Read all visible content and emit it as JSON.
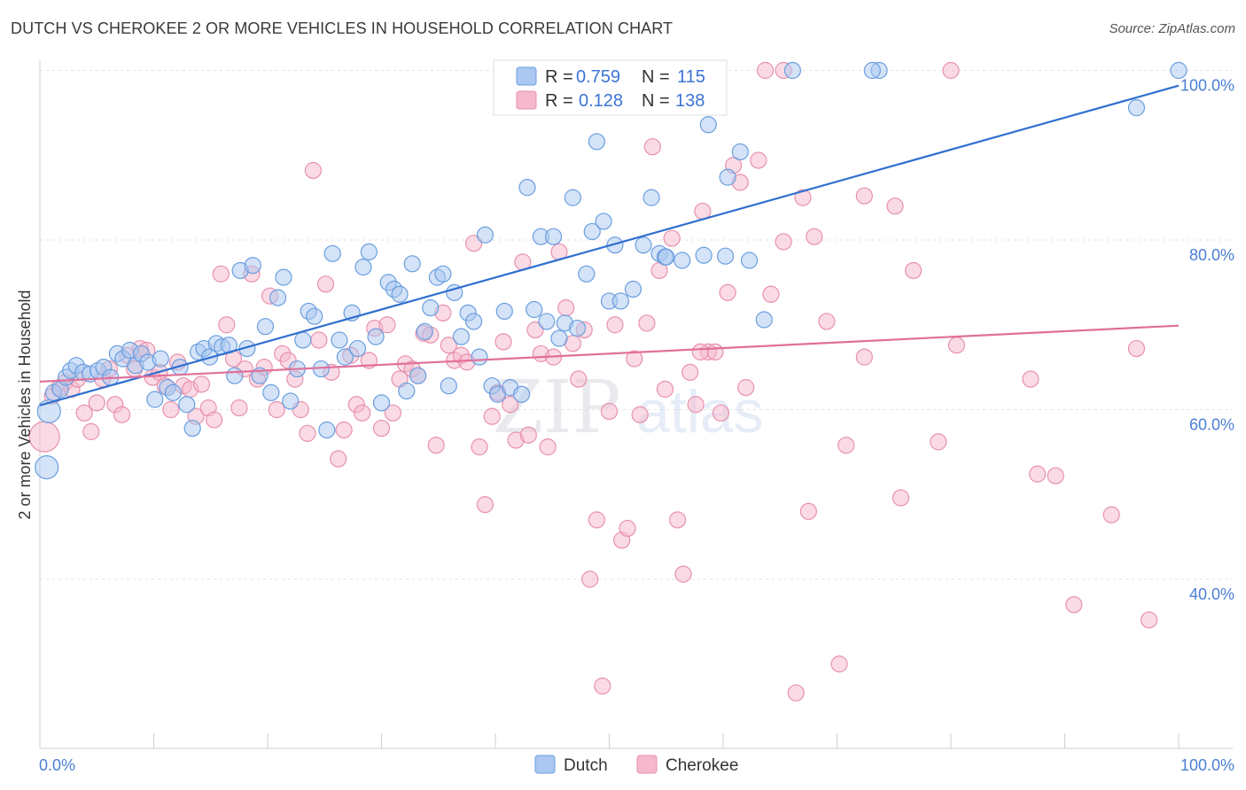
{
  "title": "DUTCH VS CHEROKEE 2 OR MORE VEHICLES IN HOUSEHOLD CORRELATION CHART",
  "source": "Source: ZipAtlas.com",
  "watermark": {
    "zip": "ZIP",
    "atlas": "atlas"
  },
  "colors": {
    "dutch_fill": "#aac8f0",
    "dutch_stroke": "#6a9ee0",
    "dutch_line": "#2f6fcf",
    "cherokee_fill": "#f5b8cc",
    "cherokee_stroke": "#e890ad",
    "cherokee_line": "#e0709a",
    "accent_text": "#4a7fd4"
  },
  "legend": {
    "rows": [
      {
        "series": "Dutch",
        "r_label": "R =",
        "r_value": "0.759",
        "n_label": "N =",
        "n_value": "115"
      },
      {
        "series": "Cherokee",
        "r_label": "R =",
        "r_value": "0.128",
        "n_label": "N =",
        "n_value": "138"
      }
    ]
  },
  "bottom_legend": [
    "Dutch",
    "Cherokee"
  ],
  "chart_data": {
    "type": "scatter",
    "title": "DUTCH VS CHEROKEE 2 OR MORE VEHICLES IN HOUSEHOLD CORRELATION CHART",
    "xlabel": "",
    "ylabel": "2 or more Vehicles in Household",
    "xlim": [
      0,
      100
    ],
    "ylim": [
      20,
      102
    ],
    "x_tick_labels": [
      "0.0%",
      "100.0%"
    ],
    "y_ticks": [
      40,
      60,
      80,
      100
    ],
    "y_tick_labels": [
      "40.0%",
      "60.0%",
      "80.0%",
      "100.0%"
    ],
    "grid": true,
    "series": [
      {
        "name": "Dutch",
        "r": 0.759,
        "n": 115,
        "trend": {
          "x": [
            0,
            100
          ],
          "y": [
            60.5,
            98.2
          ]
        },
        "points": [
          [
            0.6,
            53.2
          ],
          [
            0.8,
            59.8
          ],
          [
            1.2,
            62.0
          ],
          [
            1.8,
            62.4
          ],
          [
            2.3,
            63.8
          ],
          [
            2.7,
            64.6
          ],
          [
            3.2,
            65.2
          ],
          [
            3.8,
            64.4
          ],
          [
            4.4,
            64.2
          ],
          [
            5.1,
            64.6
          ],
          [
            5.6,
            65.0
          ],
          [
            6.2,
            63.8
          ],
          [
            6.8,
            66.6
          ],
          [
            7.3,
            66.0
          ],
          [
            7.9,
            67.0
          ],
          [
            8.4,
            65.2
          ],
          [
            8.9,
            66.6
          ],
          [
            9.5,
            65.6
          ],
          [
            10.1,
            61.2
          ],
          [
            10.6,
            66.0
          ],
          [
            11.2,
            62.6
          ],
          [
            11.7,
            62.0
          ],
          [
            12.3,
            65.0
          ],
          [
            12.9,
            60.6
          ],
          [
            13.4,
            57.8
          ],
          [
            13.9,
            66.8
          ],
          [
            14.4,
            67.2
          ],
          [
            14.9,
            66.2
          ],
          [
            15.5,
            67.8
          ],
          [
            16.0,
            67.4
          ],
          [
            16.6,
            67.6
          ],
          [
            17.1,
            64.0
          ],
          [
            17.6,
            76.4
          ],
          [
            18.2,
            67.2
          ],
          [
            18.7,
            77.0
          ],
          [
            19.3,
            64.0
          ],
          [
            19.8,
            69.8
          ],
          [
            20.3,
            62.0
          ],
          [
            20.9,
            73.2
          ],
          [
            21.4,
            75.6
          ],
          [
            22.0,
            61.0
          ],
          [
            22.6,
            64.8
          ],
          [
            23.1,
            68.2
          ],
          [
            23.6,
            71.6
          ],
          [
            24.1,
            71.0
          ],
          [
            24.7,
            64.8
          ],
          [
            25.2,
            57.6
          ],
          [
            25.7,
            78.4
          ],
          [
            26.3,
            68.2
          ],
          [
            26.8,
            66.2
          ],
          [
            27.4,
            71.4
          ],
          [
            27.9,
            67.2
          ],
          [
            28.4,
            76.8
          ],
          [
            28.9,
            78.6
          ],
          [
            29.5,
            68.6
          ],
          [
            30.0,
            60.8
          ],
          [
            30.6,
            75.0
          ],
          [
            31.1,
            74.2
          ],
          [
            31.6,
            73.6
          ],
          [
            32.2,
            62.2
          ],
          [
            32.7,
            77.2
          ],
          [
            33.2,
            64.0
          ],
          [
            33.8,
            69.2
          ],
          [
            34.3,
            72.0
          ],
          [
            34.9,
            75.6
          ],
          [
            35.4,
            76.0
          ],
          [
            35.9,
            62.8
          ],
          [
            36.4,
            73.8
          ],
          [
            37.0,
            68.6
          ],
          [
            37.6,
            71.4
          ],
          [
            38.1,
            70.4
          ],
          [
            38.6,
            66.2
          ],
          [
            39.1,
            80.6
          ],
          [
            39.7,
            62.8
          ],
          [
            40.2,
            61.8
          ],
          [
            40.8,
            71.6
          ],
          [
            41.3,
            62.6
          ],
          [
            41.8,
            96.6
          ],
          [
            42.3,
            61.8
          ],
          [
            42.8,
            86.2
          ],
          [
            43.4,
            71.8
          ],
          [
            44.0,
            80.4
          ],
          [
            44.5,
            70.4
          ],
          [
            45.1,
            80.4
          ],
          [
            45.6,
            68.4
          ],
          [
            46.1,
            70.2
          ],
          [
            46.8,
            85.0
          ],
          [
            47.2,
            69.6
          ],
          [
            48.0,
            76.0
          ],
          [
            48.5,
            81.0
          ],
          [
            48.9,
            91.6
          ],
          [
            49.5,
            82.2
          ],
          [
            50.0,
            72.8
          ],
          [
            50.5,
            79.4
          ],
          [
            51.0,
            72.8
          ],
          [
            52.1,
            74.2
          ],
          [
            53.0,
            79.4
          ],
          [
            53.7,
            85.0
          ],
          [
            54.4,
            78.4
          ],
          [
            54.9,
            78.0
          ],
          [
            56.4,
            77.6
          ],
          [
            58.3,
            78.2
          ],
          [
            58.7,
            93.6
          ],
          [
            60.4,
            87.4
          ],
          [
            61.5,
            90.4
          ],
          [
            62.3,
            77.6
          ],
          [
            63.6,
            70.6
          ],
          [
            66.1,
            100.0
          ],
          [
            73.7,
            100.0
          ],
          [
            96.3,
            95.6
          ],
          [
            100.0,
            100.0
          ],
          [
            73.1,
            100.0
          ],
          [
            49.0,
            100.0
          ],
          [
            60.2,
            78.1
          ],
          [
            55.0,
            78.0
          ]
        ]
      },
      {
        "name": "Cherokee",
        "r": 0.128,
        "n": 138,
        "trend": {
          "x": [
            0,
            100
          ],
          "y": [
            63.3,
            69.9
          ]
        },
        "points": [
          [
            0.4,
            56.8
          ],
          [
            1.1,
            61.6
          ],
          [
            1.7,
            62.6
          ],
          [
            2.2,
            63.2
          ],
          [
            2.8,
            62.4
          ],
          [
            3.3,
            63.6
          ],
          [
            3.9,
            59.6
          ],
          [
            4.5,
            57.4
          ],
          [
            5.0,
            60.8
          ],
          [
            5.5,
            63.6
          ],
          [
            6.1,
            64.8
          ],
          [
            6.6,
            60.6
          ],
          [
            7.2,
            59.4
          ],
          [
            7.7,
            66.4
          ],
          [
            8.3,
            64.8
          ],
          [
            8.8,
            67.2
          ],
          [
            9.4,
            67.0
          ],
          [
            9.9,
            63.8
          ],
          [
            10.5,
            64.4
          ],
          [
            11.0,
            62.8
          ],
          [
            11.5,
            60.0
          ],
          [
            12.1,
            65.6
          ],
          [
            12.6,
            62.8
          ],
          [
            13.2,
            62.4
          ],
          [
            13.7,
            59.2
          ],
          [
            14.2,
            63.0
          ],
          [
            14.8,
            60.2
          ],
          [
            15.3,
            58.8
          ],
          [
            15.9,
            76.0
          ],
          [
            16.4,
            70.0
          ],
          [
            17.0,
            66.0
          ],
          [
            17.5,
            60.2
          ],
          [
            18.0,
            64.8
          ],
          [
            18.6,
            76.0
          ],
          [
            19.1,
            63.6
          ],
          [
            19.7,
            65.0
          ],
          [
            20.2,
            73.4
          ],
          [
            20.8,
            60.0
          ],
          [
            21.3,
            66.6
          ],
          [
            21.8,
            65.8
          ],
          [
            22.4,
            63.6
          ],
          [
            22.9,
            60.0
          ],
          [
            23.5,
            57.2
          ],
          [
            24.0,
            88.2
          ],
          [
            24.5,
            68.2
          ],
          [
            25.1,
            74.8
          ],
          [
            25.6,
            64.4
          ],
          [
            26.2,
            54.2
          ],
          [
            26.7,
            57.6
          ],
          [
            27.3,
            66.4
          ],
          [
            27.8,
            60.6
          ],
          [
            28.3,
            59.6
          ],
          [
            28.9,
            65.8
          ],
          [
            29.4,
            69.6
          ],
          [
            30.0,
            57.8
          ],
          [
            30.5,
            70.0
          ],
          [
            31.0,
            59.6
          ],
          [
            31.6,
            63.6
          ],
          [
            32.1,
            65.4
          ],
          [
            32.7,
            64.8
          ],
          [
            33.2,
            64.0
          ],
          [
            33.7,
            69.0
          ],
          [
            34.3,
            68.8
          ],
          [
            34.8,
            55.8
          ],
          [
            35.4,
            71.4
          ],
          [
            35.9,
            67.6
          ],
          [
            36.4,
            65.8
          ],
          [
            37.0,
            66.4
          ],
          [
            37.5,
            65.6
          ],
          [
            38.1,
            79.6
          ],
          [
            38.6,
            55.6
          ],
          [
            39.1,
            48.8
          ],
          [
            39.7,
            59.2
          ],
          [
            40.2,
            62.0
          ],
          [
            40.7,
            68.0
          ],
          [
            41.3,
            60.6
          ],
          [
            41.8,
            56.4
          ],
          [
            42.4,
            77.4
          ],
          [
            42.9,
            57.0
          ],
          [
            43.5,
            69.4
          ],
          [
            44.0,
            66.6
          ],
          [
            44.6,
            55.6
          ],
          [
            45.1,
            66.2
          ],
          [
            45.6,
            78.6
          ],
          [
            46.2,
            72.0
          ],
          [
            46.8,
            67.8
          ],
          [
            47.3,
            63.6
          ],
          [
            47.8,
            69.4
          ],
          [
            48.3,
            40.0
          ],
          [
            48.9,
            47.0
          ],
          [
            49.4,
            27.4
          ],
          [
            50.0,
            59.8
          ],
          [
            50.5,
            70.0
          ],
          [
            51.1,
            44.6
          ],
          [
            51.6,
            46.0
          ],
          [
            52.2,
            66.0
          ],
          [
            52.7,
            59.4
          ],
          [
            53.3,
            70.2
          ],
          [
            53.8,
            91.0
          ],
          [
            54.4,
            76.4
          ],
          [
            54.9,
            62.4
          ],
          [
            55.5,
            80.2
          ],
          [
            56.0,
            47.0
          ],
          [
            56.5,
            40.6
          ],
          [
            57.1,
            64.4
          ],
          [
            57.6,
            60.6
          ],
          [
            58.2,
            83.4
          ],
          [
            58.7,
            66.8
          ],
          [
            59.3,
            66.8
          ],
          [
            59.8,
            59.6
          ],
          [
            60.4,
            73.8
          ],
          [
            60.9,
            88.8
          ],
          [
            61.5,
            86.8
          ],
          [
            62.0,
            62.6
          ],
          [
            63.1,
            89.4
          ],
          [
            64.2,
            73.6
          ],
          [
            65.3,
            79.8
          ],
          [
            66.4,
            26.6
          ],
          [
            67.0,
            85.0
          ],
          [
            67.5,
            48.0
          ],
          [
            68.0,
            80.4
          ],
          [
            69.1,
            70.4
          ],
          [
            70.2,
            30.0
          ],
          [
            72.4,
            85.2
          ],
          [
            75.1,
            84.0
          ],
          [
            75.6,
            49.6
          ],
          [
            76.7,
            76.4
          ],
          [
            78.9,
            56.2
          ],
          [
            80.0,
            100.0
          ],
          [
            80.5,
            67.6
          ],
          [
            87.0,
            63.6
          ],
          [
            89.2,
            52.2
          ],
          [
            90.8,
            37.0
          ],
          [
            94.1,
            47.6
          ],
          [
            96.3,
            67.2
          ],
          [
            97.4,
            35.2
          ],
          [
            63.7,
            100.0
          ],
          [
            65.3,
            100.0
          ],
          [
            87.6,
            52.4
          ],
          [
            70.8,
            55.8
          ],
          [
            72.4,
            66.2
          ],
          [
            58.0,
            66.8
          ]
        ]
      }
    ]
  }
}
